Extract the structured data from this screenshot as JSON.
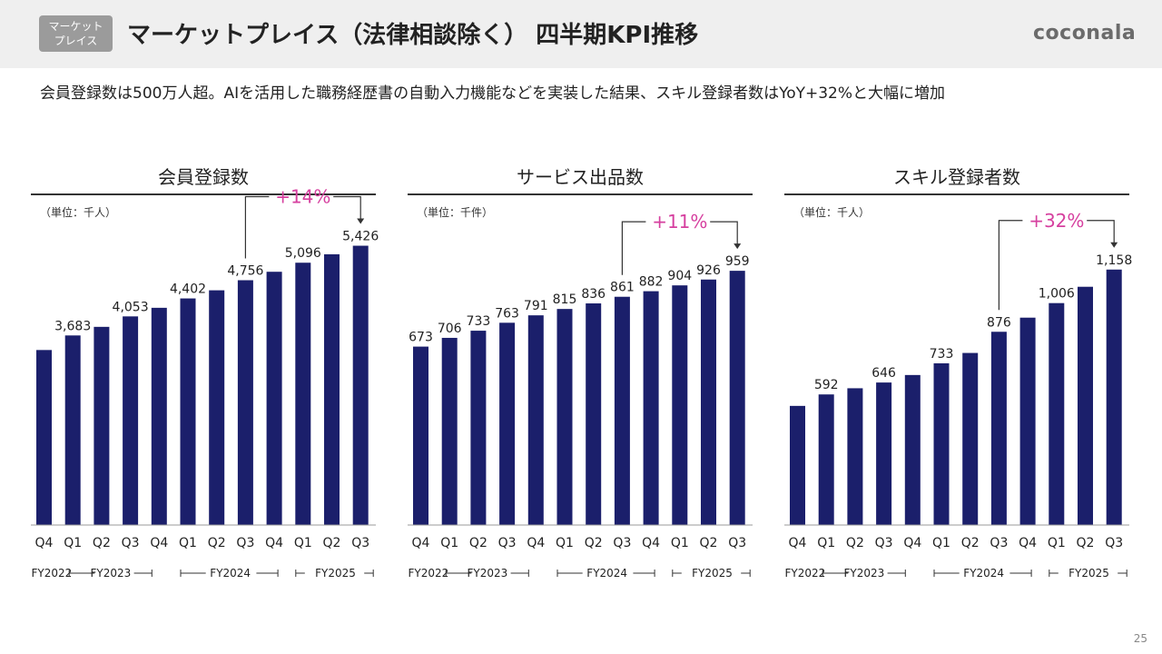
{
  "header": {
    "badge": [
      "マーケット",
      "プレイス"
    ],
    "title": "マーケットプレイス（法律相談除く） 四半期KPI推移",
    "logo": "coconala"
  },
  "subtitle": "会員登録数は500万人超。AIを活用した職務経歴書の自動入力機能などを実装した結果、スキル登録者数はYoY+32%と大幅に増加",
  "page_number": "25",
  "colors": {
    "bar": "#1b1f6b",
    "accent": "#d6409f",
    "rule": "#333333"
  },
  "chart_data": [
    {
      "type": "bar",
      "title": "会員登録数",
      "unit": "（単位：千人）",
      "categories": [
        "Q4",
        "Q1",
        "Q2",
        "Q3",
        "Q4",
        "Q1",
        "Q2",
        "Q3",
        "Q4",
        "Q1",
        "Q2",
        "Q3"
      ],
      "values": [
        3400,
        3683,
        3850,
        4053,
        4220,
        4402,
        4560,
        4756,
        4920,
        5096,
        5260,
        5426
      ],
      "labels": [
        "",
        "3,683",
        "",
        "4,053",
        "",
        "4,402",
        "",
        "4,756",
        "",
        "5,096",
        "",
        "5,426"
      ],
      "ylim": [
        0,
        6000
      ],
      "growth": {
        "text": "+14%",
        "from": 7,
        "to": 11
      },
      "fiscal_years": [
        "FY2022",
        "FY2023",
        "FY2024",
        "FY2025"
      ]
    },
    {
      "type": "bar",
      "title": "サービス出品数",
      "unit": "（単位：千件）",
      "categories": [
        "Q4",
        "Q1",
        "Q2",
        "Q3",
        "Q4",
        "Q1",
        "Q2",
        "Q3",
        "Q4",
        "Q1",
        "Q2",
        "Q3"
      ],
      "values": [
        673,
        706,
        733,
        763,
        791,
        815,
        836,
        861,
        882,
        904,
        926,
        959
      ],
      "labels": [
        "673",
        "706",
        "733",
        "763",
        "791",
        "815",
        "836",
        "861",
        "882",
        "904",
        "926",
        "959"
      ],
      "ylim": [
        0,
        1165
      ],
      "growth": {
        "text": "+11%",
        "from": 7,
        "to": 11
      },
      "fiscal_years": [
        "FY2022",
        "FY2023",
        "FY2024",
        "FY2025"
      ]
    },
    {
      "type": "bar",
      "title": "スキル登録者数",
      "unit": "（単位：千人）",
      "categories": [
        "Q4",
        "Q1",
        "Q2",
        "Q3",
        "Q4",
        "Q1",
        "Q2",
        "Q3",
        "Q4",
        "Q1",
        "Q2",
        "Q3"
      ],
      "values": [
        540,
        592,
        620,
        646,
        680,
        733,
        780,
        876,
        940,
        1006,
        1080,
        1158
      ],
      "labels": [
        "",
        "592",
        "",
        "646",
        "",
        "733",
        "",
        "876",
        "",
        "1,006",
        "",
        "1,158"
      ],
      "ylim": [
        0,
        1400
      ],
      "growth": {
        "text": "+32%",
        "from": 7,
        "to": 11
      },
      "fiscal_years": [
        "FY2022",
        "FY2023",
        "FY2024",
        "FY2025"
      ]
    }
  ]
}
